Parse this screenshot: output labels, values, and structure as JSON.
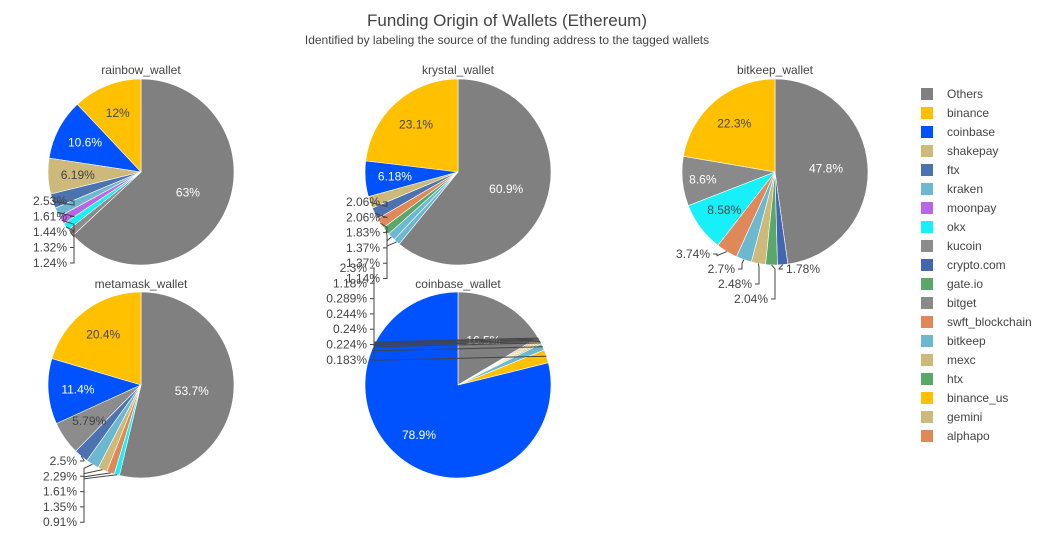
{
  "title": "Funding Origin of Wallets (Ethereum)",
  "subtitle": "Identified by labeling the source of the funding address to the tagged wallets",
  "legend": [
    {
      "label": "Others",
      "color": "#808080"
    },
    {
      "label": "binance",
      "color": "#FFC000"
    },
    {
      "label": "coinbase",
      "color": "#0052FF"
    },
    {
      "label": "shakepay",
      "color": "#CDBA7A"
    },
    {
      "label": "ftx",
      "color": "#4C72B0"
    },
    {
      "label": "kraken",
      "color": "#6BB8D0"
    },
    {
      "label": "moonpay",
      "color": "#B866E8"
    },
    {
      "label": "okx",
      "color": "#17F0F8"
    },
    {
      "label": "kucoin",
      "color": "#8C8C8C"
    },
    {
      "label": "crypto.com",
      "color": "#4466B0"
    },
    {
      "label": "gate.io",
      "color": "#5AA869"
    },
    {
      "label": "bitget",
      "color": "#8A8A8A"
    },
    {
      "label": "swft_blockchain",
      "color": "#E0885A"
    },
    {
      "label": "bitkeep",
      "color": "#6BB8D0"
    },
    {
      "label": "mexc",
      "color": "#CDBA7A"
    },
    {
      "label": "htx",
      "color": "#5AA869"
    },
    {
      "label": "binance_us",
      "color": "#FFC000"
    },
    {
      "label": "gemini",
      "color": "#CDBA7A"
    },
    {
      "label": "alphapo",
      "color": "#E0885A"
    }
  ],
  "chart_data": [
    {
      "type": "pie",
      "title": "rainbow_wallet",
      "slices": [
        {
          "label": "Others",
          "value": 63,
          "text": "63%"
        },
        {
          "label": "binance",
          "value": 12,
          "text": "12%"
        },
        {
          "label": "coinbase",
          "value": 10.6,
          "text": "10.6%"
        },
        {
          "label": "shakepay",
          "value": 6.19,
          "text": "6.19%"
        },
        {
          "label": "ftx",
          "value": 2.53,
          "text": "2.53%"
        },
        {
          "label": "kraken",
          "value": 1.61,
          "text": "1.61%"
        },
        {
          "label": "moonpay",
          "value": 1.44,
          "text": "1.44%"
        },
        {
          "label": "okx",
          "value": 1.32,
          "text": "1.32%"
        },
        {
          "label": "kucoin",
          "value": 1.24,
          "text": "1.24%"
        }
      ]
    },
    {
      "type": "pie",
      "title": "krystal_wallet",
      "slices": [
        {
          "label": "Others",
          "value": 60.9,
          "text": "60.9%"
        },
        {
          "label": "binance",
          "value": 23.1,
          "text": "23.1%"
        },
        {
          "label": "coinbase",
          "value": 6.18,
          "text": "6.18%"
        },
        {
          "label": "shakepay",
          "value": 2.06,
          "text": "2.06%"
        },
        {
          "label": "ftx",
          "value": 2.06,
          "text": "2.06%"
        },
        {
          "label": "swft_blockchain",
          "value": 1.83,
          "text": "1.83%"
        },
        {
          "label": "gate.io",
          "value": 1.37,
          "text": "1.37%"
        },
        {
          "label": "bitkeep",
          "value": 1.37,
          "text": "1.37%"
        },
        {
          "label": "kraken",
          "value": 1.14,
          "text": "1.14%"
        }
      ]
    },
    {
      "type": "pie",
      "title": "bitkeep_wallet",
      "slices": [
        {
          "label": "Others",
          "value": 47.8,
          "text": "47.8%"
        },
        {
          "label": "binance",
          "value": 22.3,
          "text": "22.3%"
        },
        {
          "label": "bitget",
          "value": 8.6,
          "text": "8.6%"
        },
        {
          "label": "okx",
          "value": 8.58,
          "text": "8.58%"
        },
        {
          "label": "swft_blockchain",
          "value": 3.74,
          "text": "3.74%"
        },
        {
          "label": "kraken",
          "value": 2.7,
          "text": "2.7%"
        },
        {
          "label": "mexc",
          "value": 2.48,
          "text": "2.48%"
        },
        {
          "label": "htx",
          "value": 2.04,
          "text": "2.04%"
        },
        {
          "label": "crypto.com",
          "value": 1.78,
          "text": "1.78%"
        }
      ]
    },
    {
      "type": "pie",
      "title": "metamask_wallet",
      "slices": [
        {
          "label": "Others",
          "value": 53.7,
          "text": "53.7%"
        },
        {
          "label": "binance",
          "value": 20.4,
          "text": "20.4%"
        },
        {
          "label": "coinbase",
          "value": 11.4,
          "text": "11.4%"
        },
        {
          "label": "kucoin",
          "value": 5.79,
          "text": "5.79%"
        },
        {
          "label": "ftx",
          "value": 2.5,
          "text": "2.5%"
        },
        {
          "label": "kraken",
          "value": 2.29,
          "text": "2.29%"
        },
        {
          "label": "shakepay",
          "value": 1.61,
          "text": "1.61%"
        },
        {
          "label": "alphapo",
          "value": 1.35,
          "text": "1.35%"
        },
        {
          "label": "okx",
          "value": 0.91,
          "text": "0.91%"
        }
      ]
    },
    {
      "type": "pie",
      "title": "coinbase_wallet",
      "slices": [
        {
          "label": "Others",
          "value": 16.5,
          "text": "16.5%"
        },
        {
          "label": "coinbase",
          "value": 78.9,
          "text": "78.9%"
        },
        {
          "label": "binance",
          "value": 2.3,
          "text": "2.3%"
        },
        {
          "label": "kraken",
          "value": 1.18,
          "text": "1.18%"
        },
        {
          "label": "shakepay",
          "value": 0.289,
          "text": "0.289%"
        },
        {
          "label": "gemini",
          "value": 0.244,
          "text": "0.244%"
        },
        {
          "label": "binance_us",
          "value": 0.24,
          "text": "0.24%"
        },
        {
          "label": "alphapo",
          "value": 0.224,
          "text": "0.224%"
        },
        {
          "label": "ftx",
          "value": 0.183,
          "text": "0.183%"
        }
      ]
    }
  ]
}
